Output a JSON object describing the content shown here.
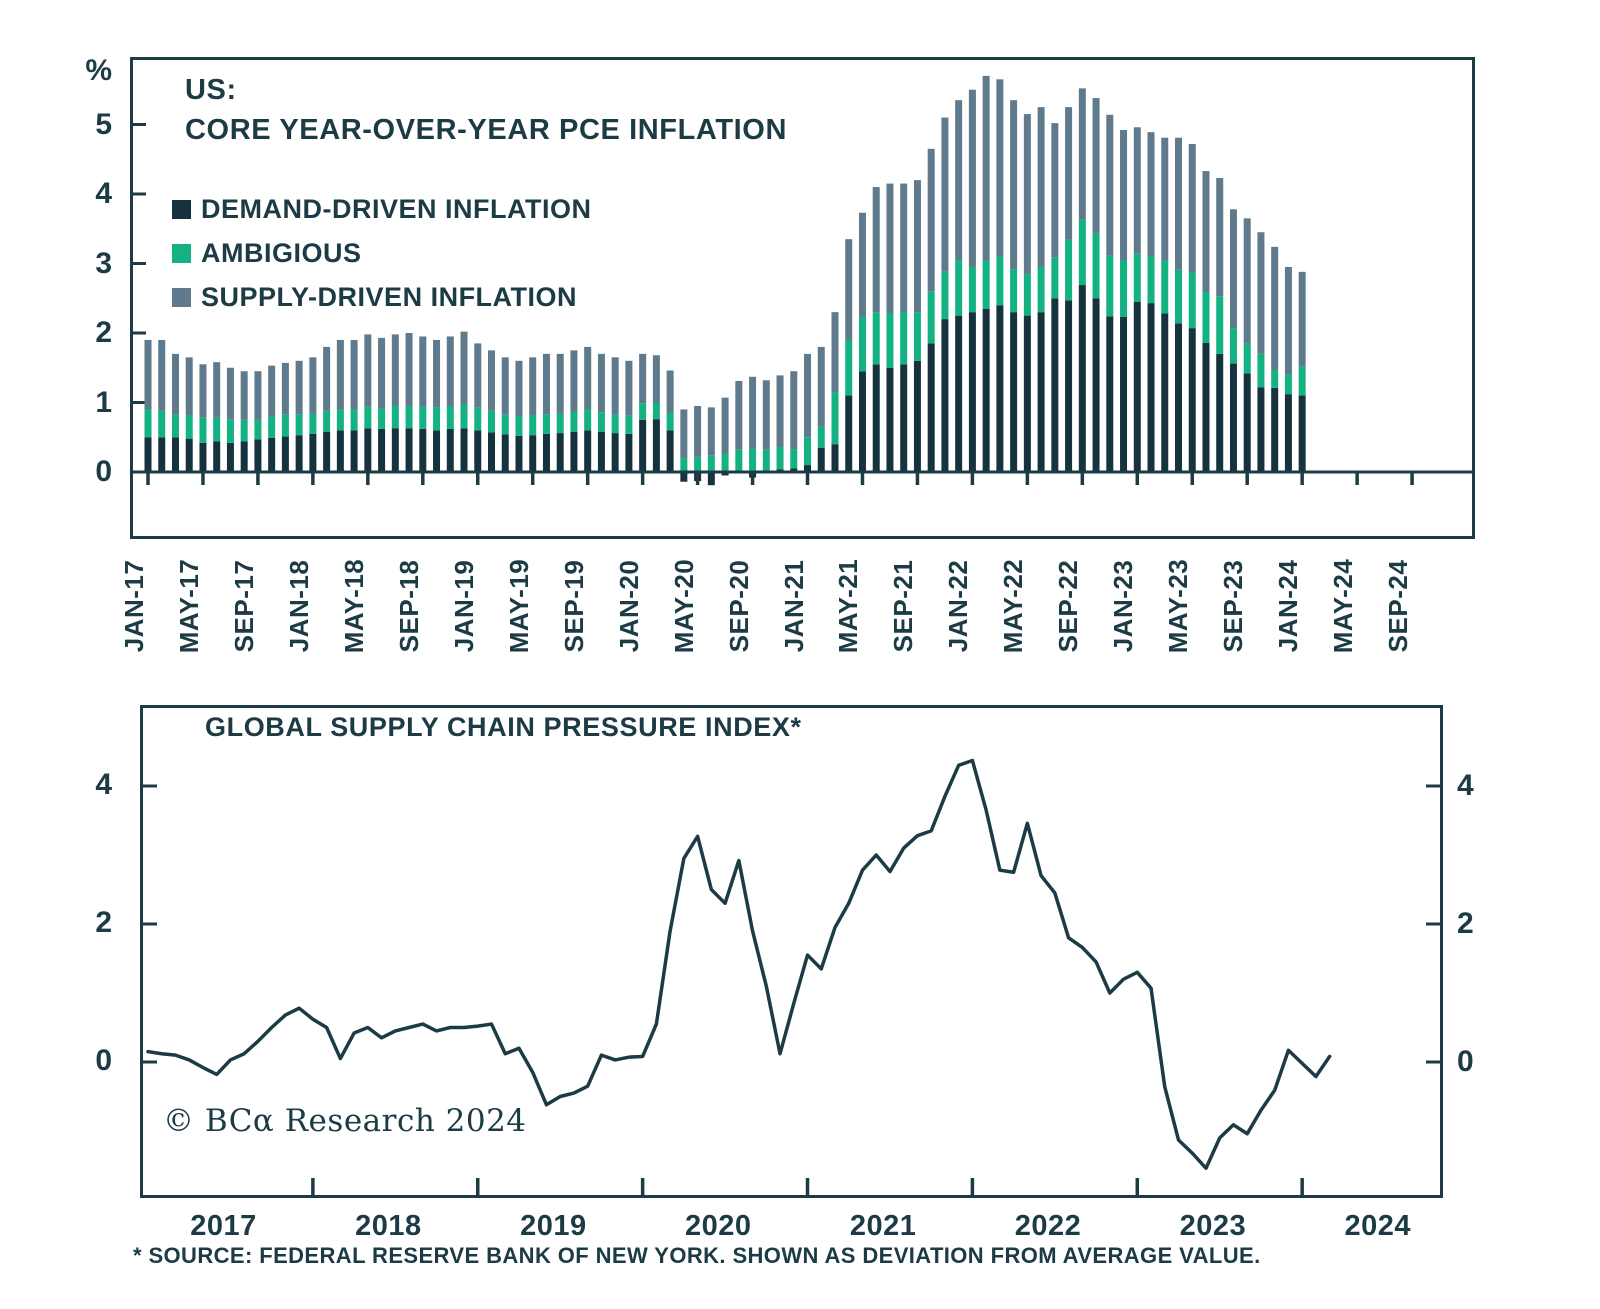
{
  "colors": {
    "ink": "#1c3b45",
    "demand": "#16323e",
    "ambigious": "#14b183",
    "supply": "#5e7a8c",
    "background": "#ffffff"
  },
  "top_chart": {
    "title_line1": "US:",
    "title_line2": "CORE YEAR-OVER-YEAR PCE INFLATION",
    "unit_label": "%",
    "legend": [
      {
        "label": "DEMAND-DRIVEN INFLATION",
        "color": "#16323e"
      },
      {
        "label": "AMBIGIOUS",
        "color": "#14b183"
      },
      {
        "label": "SUPPLY-DRIVEN INFLATION",
        "color": "#5e7a8c"
      }
    ],
    "yticks": [
      0,
      1,
      2,
      3,
      4,
      5
    ],
    "xticks": [
      "JAN-17",
      "MAY-17",
      "SEP-17",
      "JAN-18",
      "MAY-18",
      "SEP-18",
      "JAN-19",
      "MAY-19",
      "SEP-19",
      "JAN-20",
      "MAY-20",
      "SEP-20",
      "JAN-21",
      "MAY-21",
      "SEP-21",
      "JAN-22",
      "MAY-22",
      "SEP-22",
      "JAN-23",
      "MAY-23",
      "SEP-23",
      "JAN-24",
      "MAY-24",
      "SEP-24"
    ]
  },
  "bottom_chart": {
    "title": "GLOBAL SUPPLY CHAIN PRESSURE INDEX*",
    "yticks": [
      0,
      2,
      4
    ],
    "year_labels": [
      "2017",
      "2018",
      "2019",
      "2020",
      "2021",
      "2022",
      "2023",
      "2024"
    ],
    "copyright": "© BCα Research 2024",
    "footnote": "* SOURCE: FEDERAL RESERVE BANK OF NEW YORK. SHOWN AS DEVIATION FROM AVERAGE VALUE."
  },
  "chart_data": [
    {
      "type": "bar",
      "stacked": true,
      "title": "US: CORE YEAR-OVER-YEAR PCE INFLATION",
      "ylabel": "%",
      "ylim": [
        0,
        5.8
      ],
      "grid": false,
      "legend_position": "top-left",
      "categories": [
        "JAN-17",
        "FEB-17",
        "MAR-17",
        "APR-17",
        "MAY-17",
        "JUN-17",
        "JUL-17",
        "AUG-17",
        "SEP-17",
        "OCT-17",
        "NOV-17",
        "DEC-17",
        "JAN-18",
        "FEB-18",
        "MAR-18",
        "APR-18",
        "MAY-18",
        "JUN-18",
        "JUL-18",
        "AUG-18",
        "SEP-18",
        "OCT-18",
        "NOV-18",
        "DEC-18",
        "JAN-19",
        "FEB-19",
        "MAR-19",
        "APR-19",
        "MAY-19",
        "JUN-19",
        "JUL-19",
        "AUG-19",
        "SEP-19",
        "OCT-19",
        "NOV-19",
        "DEC-19",
        "JAN-20",
        "FEB-20",
        "MAR-20",
        "APR-20",
        "MAY-20",
        "JUN-20",
        "JUL-20",
        "AUG-20",
        "SEP-20",
        "OCT-20",
        "NOV-20",
        "DEC-20",
        "JAN-21",
        "FEB-21",
        "MAR-21",
        "APR-21",
        "MAY-21",
        "JUN-21",
        "JUL-21",
        "AUG-21",
        "SEP-21",
        "OCT-21",
        "NOV-21",
        "DEC-21",
        "JAN-22",
        "FEB-22",
        "MAR-22",
        "APR-22",
        "MAY-22",
        "JUN-22",
        "JUL-22",
        "AUG-22",
        "SEP-22",
        "OCT-22",
        "NOV-22",
        "DEC-22",
        "JAN-23",
        "FEB-23",
        "MAR-23",
        "APR-23",
        "MAY-23",
        "JUN-23",
        "JUL-23",
        "AUG-23",
        "SEP-23",
        "OCT-23",
        "NOV-23",
        "DEC-23",
        "JAN-24"
      ],
      "series": [
        {
          "name": "DEMAND-DRIVEN INFLATION",
          "color": "#16323e",
          "values": [
            0.5,
            0.5,
            0.5,
            0.48,
            0.42,
            0.44,
            0.42,
            0.44,
            0.47,
            0.49,
            0.51,
            0.53,
            0.55,
            0.58,
            0.6,
            0.6,
            0.63,
            0.62,
            0.63,
            0.63,
            0.62,
            0.6,
            0.62,
            0.63,
            0.6,
            0.57,
            0.54,
            0.52,
            0.53,
            0.55,
            0.56,
            0.58,
            0.6,
            0.58,
            0.56,
            0.55,
            0.75,
            0.76,
            0.6,
            -0.14,
            -0.13,
            -0.19,
            -0.05,
            0.02,
            -0.08,
            0.02,
            0.04,
            0.05,
            0.1,
            0.35,
            0.4,
            1.1,
            1.45,
            1.55,
            1.5,
            1.55,
            1.6,
            1.85,
            2.2,
            2.25,
            2.3,
            2.35,
            2.4,
            2.3,
            2.25,
            2.3,
            2.5,
            2.47,
            2.69,
            2.5,
            2.24,
            2.23,
            2.45,
            2.43,
            2.28,
            2.14,
            2.07,
            1.86,
            1.7,
            1.56,
            1.42,
            1.22,
            1.21,
            1.12,
            1.1
          ]
        },
        {
          "name": "AMBIGIOUS",
          "color": "#14b183",
          "values": [
            0.4,
            0.38,
            0.33,
            0.34,
            0.36,
            0.34,
            0.34,
            0.31,
            0.28,
            0.31,
            0.32,
            0.3,
            0.29,
            0.3,
            0.3,
            0.3,
            0.31,
            0.3,
            0.32,
            0.32,
            0.32,
            0.33,
            0.33,
            0.35,
            0.33,
            0.31,
            0.29,
            0.28,
            0.29,
            0.28,
            0.28,
            0.29,
            0.3,
            0.28,
            0.27,
            0.26,
            0.24,
            0.24,
            0.25,
            0.2,
            0.22,
            0.24,
            0.26,
            0.3,
            0.33,
            0.3,
            0.32,
            0.28,
            0.4,
            0.3,
            0.75,
            0.8,
            0.78,
            0.75,
            0.78,
            0.76,
            0.7,
            0.75,
            0.68,
            0.8,
            0.65,
            0.7,
            0.7,
            0.62,
            0.6,
            0.65,
            0.59,
            0.87,
            0.94,
            0.94,
            0.87,
            0.82,
            0.69,
            0.67,
            0.77,
            0.77,
            0.8,
            0.73,
            0.83,
            0.51,
            0.43,
            0.48,
            0.25,
            0.28,
            0.42
          ]
        },
        {
          "name": "SUPPLY-DRIVEN INFLATION",
          "color": "#5e7a8c",
          "values": [
            1.0,
            1.02,
            0.87,
            0.83,
            0.77,
            0.8,
            0.74,
            0.7,
            0.7,
            0.73,
            0.74,
            0.77,
            0.81,
            0.92,
            1.0,
            1.0,
            1.04,
            1.01,
            1.03,
            1.05,
            1.01,
            0.97,
            1.0,
            1.04,
            0.92,
            0.87,
            0.82,
            0.8,
            0.83,
            0.87,
            0.86,
            0.88,
            0.9,
            0.84,
            0.82,
            0.79,
            0.71,
            0.68,
            0.61,
            0.7,
            0.73,
            0.69,
            0.81,
            0.99,
            1.04,
            1.0,
            1.03,
            1.12,
            1.2,
            1.15,
            1.15,
            1.45,
            1.5,
            1.8,
            1.87,
            1.84,
            1.9,
            2.05,
            2.22,
            2.3,
            2.55,
            2.65,
            2.55,
            2.43,
            2.3,
            2.3,
            1.93,
            1.91,
            1.89,
            1.94,
            2.03,
            1.87,
            1.82,
            1.79,
            1.76,
            1.9,
            1.85,
            1.74,
            1.7,
            1.71,
            1.8,
            1.75,
            1.78,
            1.55,
            1.36
          ]
        }
      ]
    },
    {
      "type": "line",
      "title": "GLOBAL SUPPLY CHAIN PRESSURE INDEX*",
      "x_start": "JAN-17",
      "x_interval": "month",
      "ylim": [
        -2.1,
        4.9
      ],
      "yticks": [
        0,
        2,
        4
      ],
      "grid": false,
      "xlabels": [
        "2017",
        "2018",
        "2019",
        "2020",
        "2021",
        "2022",
        "2023",
        "2024"
      ],
      "footnote": "* SOURCE: FEDERAL RESERVE BANK OF NEW YORK. SHOWN AS DEVIATION FROM AVERAGE VALUE.",
      "values": [
        0.15,
        0.12,
        0.1,
        0.03,
        -0.08,
        -0.18,
        0.03,
        0.12,
        0.3,
        0.5,
        0.68,
        0.78,
        0.62,
        0.5,
        0.05,
        0.42,
        0.5,
        0.35,
        0.45,
        0.5,
        0.55,
        0.45,
        0.5,
        0.5,
        0.52,
        0.55,
        0.12,
        0.2,
        -0.15,
        -0.62,
        -0.5,
        -0.45,
        -0.35,
        0.1,
        0.03,
        0.07,
        0.08,
        0.55,
        1.9,
        2.95,
        3.27,
        2.5,
        2.3,
        2.92,
        1.9,
        1.1,
        0.12,
        0.85,
        1.55,
        1.35,
        1.95,
        2.3,
        2.78,
        3.0,
        2.76,
        3.1,
        3.28,
        3.35,
        3.85,
        4.3,
        4.37,
        3.65,
        2.78,
        2.75,
        3.46,
        2.7,
        2.45,
        1.8,
        1.66,
        1.45,
        1.0,
        1.2,
        1.3,
        1.07,
        -0.36,
        -1.13,
        -1.32,
        -1.54,
        -1.1,
        -0.91,
        -1.04,
        -0.7,
        -0.41,
        0.17,
        -0.02,
        -0.21,
        0.08
      ]
    }
  ]
}
